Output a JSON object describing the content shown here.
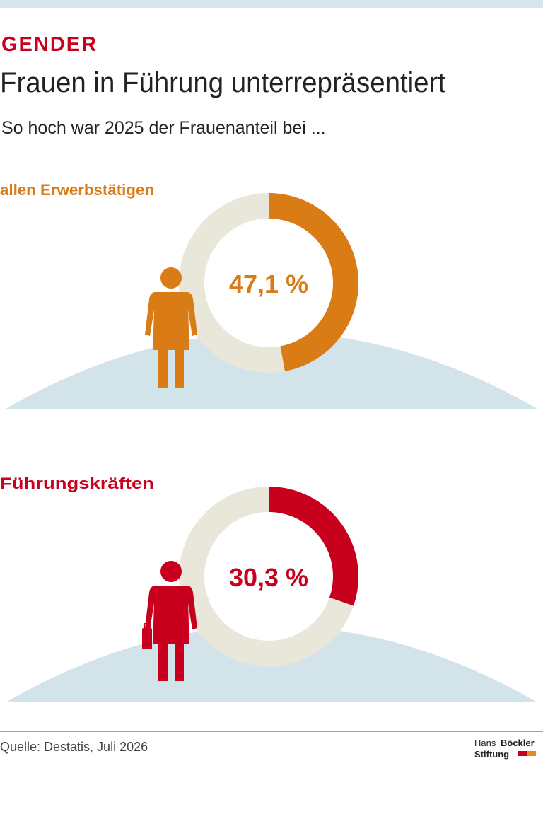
{
  "kicker": "GENDER",
  "title": "Frauen in Führung unterrepräsentiert",
  "subtitle": "So hoch war 2025 der Frauenanteil bei ...",
  "chart_data": [
    {
      "type": "donut",
      "title": "allen Erwerbstätigen",
      "values": [
        47.1
      ],
      "value_labels": [
        "47,1 %"
      ],
      "ylim": [
        0,
        100
      ],
      "color": "#d97c16",
      "track_color": "#e9e6da"
    },
    {
      "type": "donut",
      "title": "Führungskräften",
      "values": [
        30.3
      ],
      "value_labels": [
        "30,3 %"
      ],
      "ylim": [
        0,
        100
      ],
      "color": "#c8001e",
      "track_color": "#e9e6da"
    }
  ],
  "source": "Quelle: Destatis, Juli 2026",
  "logo": {
    "name": "Hans",
    "name_bold": "Böckler",
    "org": "Stiftung"
  }
}
